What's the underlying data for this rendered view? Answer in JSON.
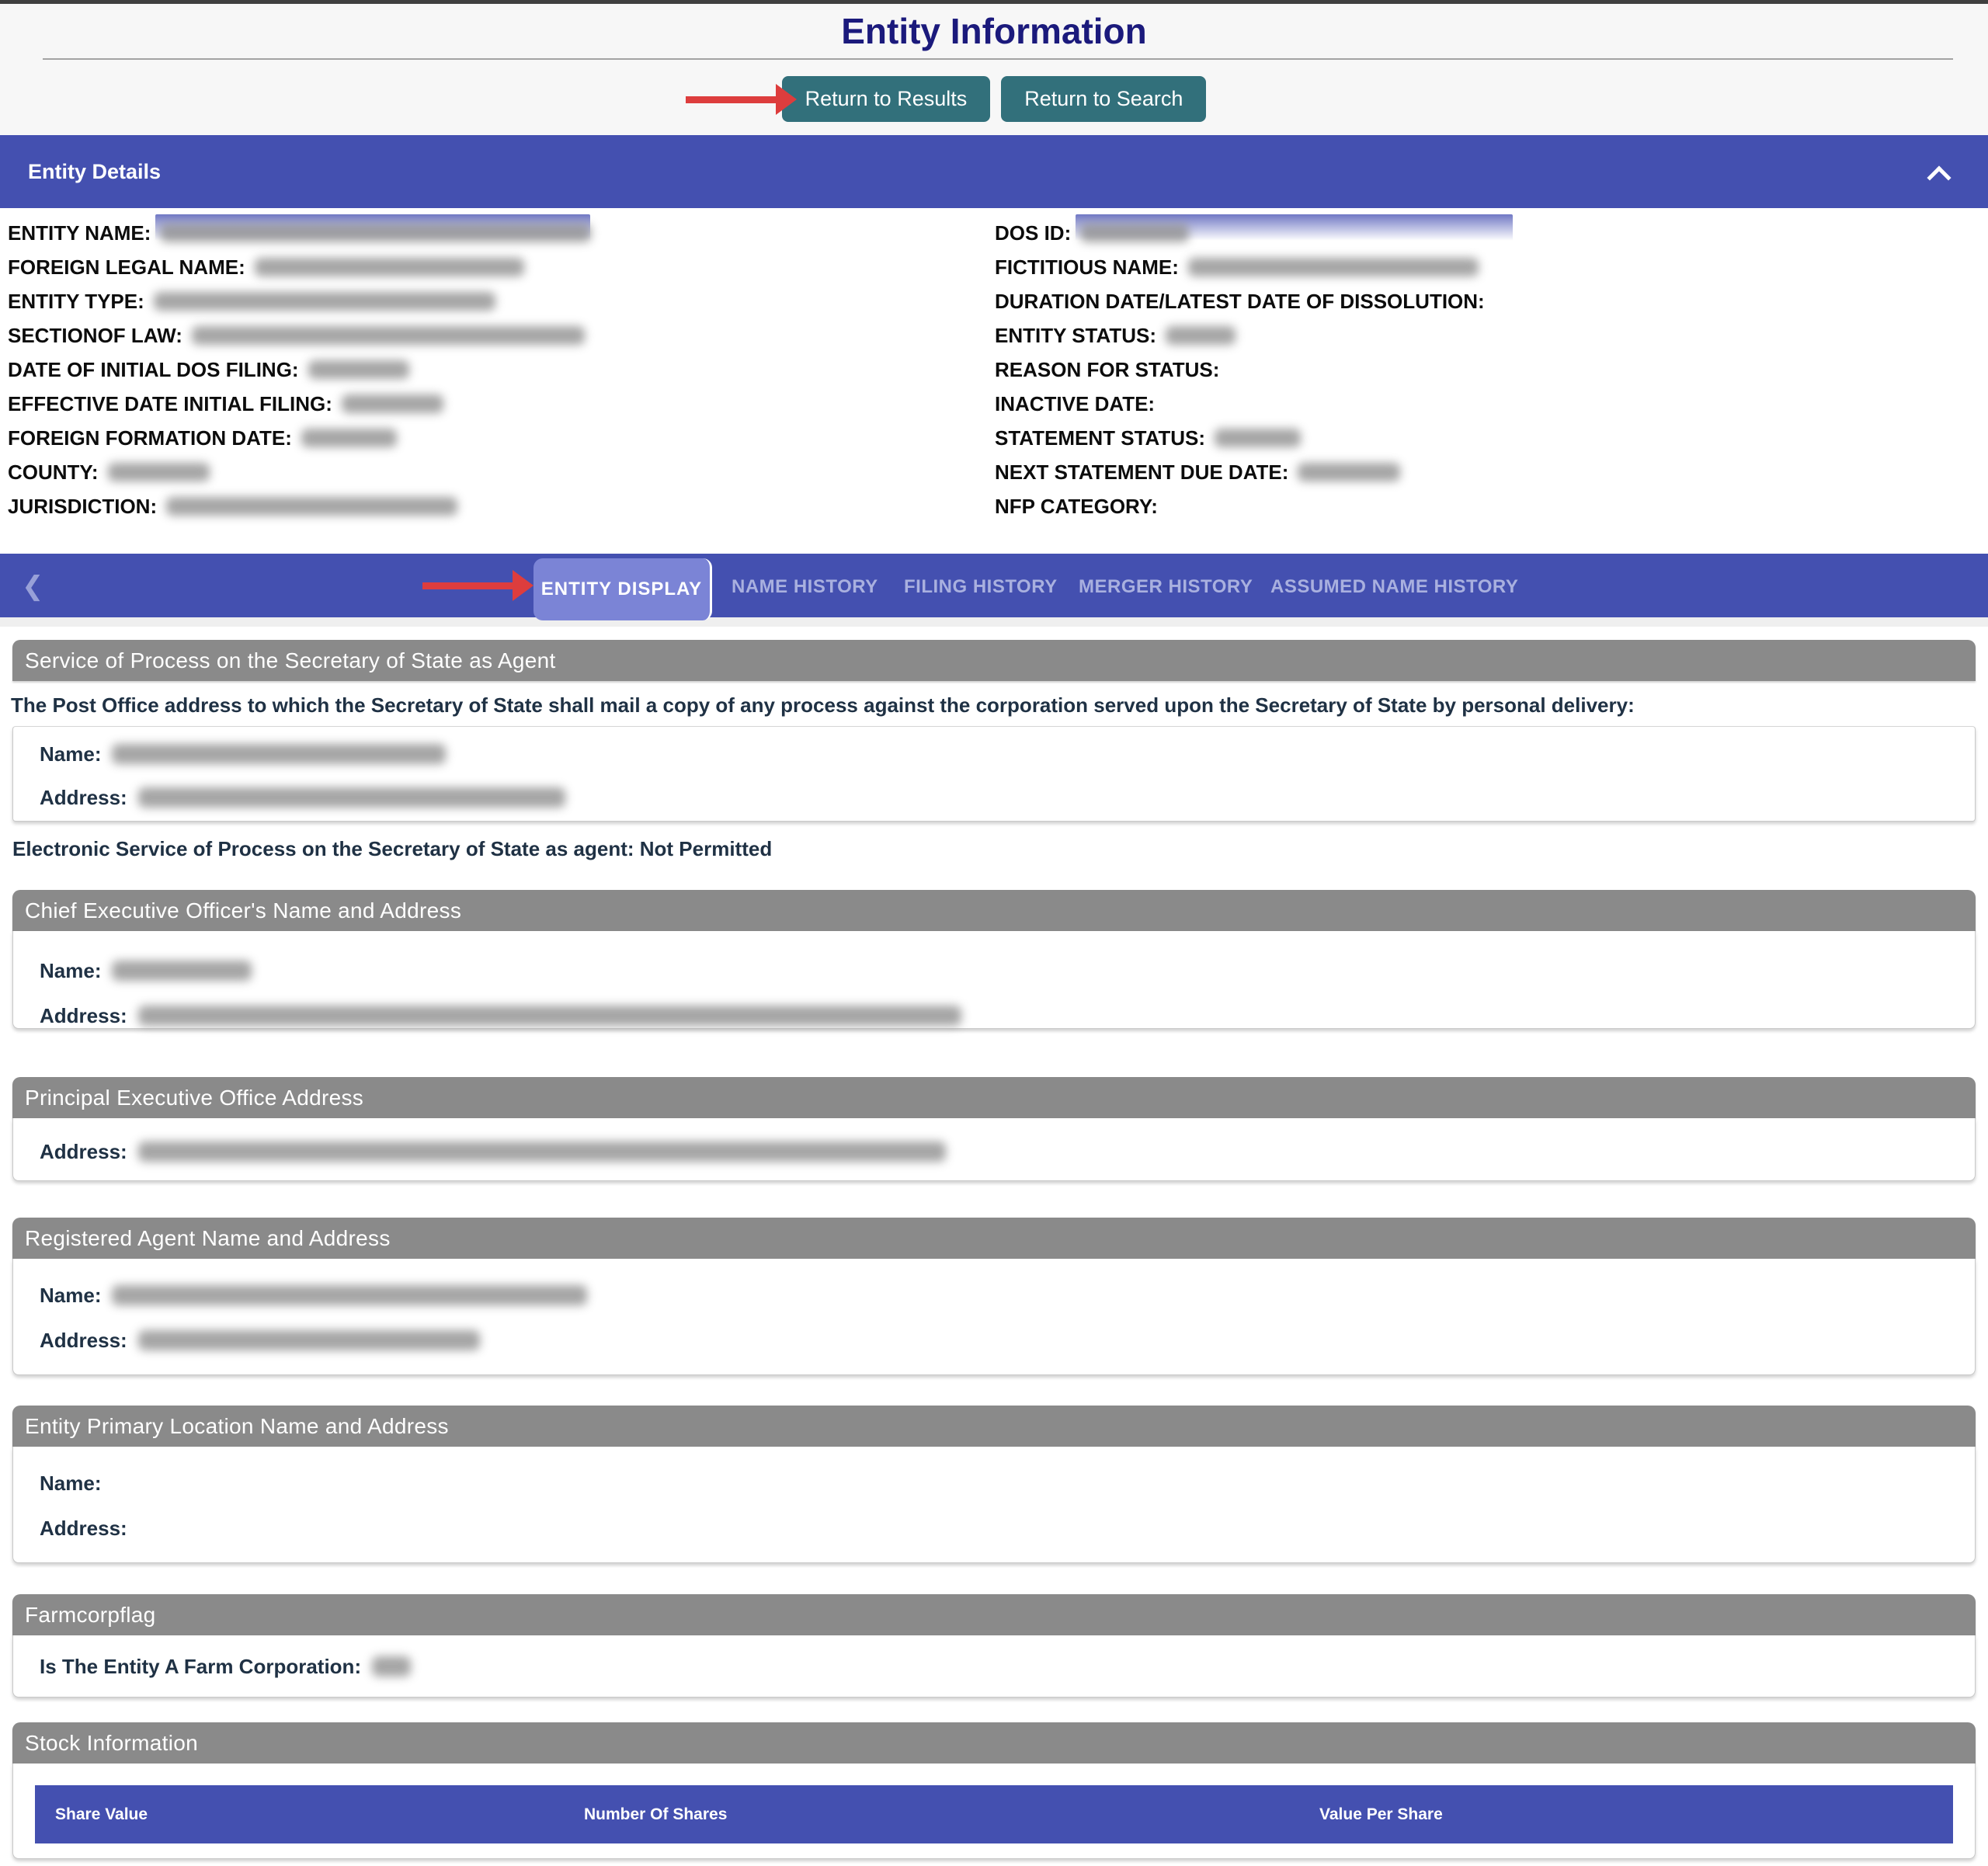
{
  "colors": {
    "indigo": "#4450b0",
    "indigo_light": "#7b84d6",
    "teal": "#32707b",
    "red": "#dd3d3d",
    "gray_header": "#8a8a8a",
    "navy_title": "#1b1a7c",
    "text_dark": "#1f3144",
    "tab_inactive": "#a9b0df"
  },
  "page": {
    "title": "Entity Information",
    "return_to_results": "Return to Results",
    "return_to_search": "Return to Search"
  },
  "entity_details": {
    "header": "Entity Details",
    "left_fields": [
      {
        "label": "ENTITY NAME:",
        "blur_width": 555,
        "band_width": 560
      },
      {
        "label": "FOREIGN LEGAL NAME:",
        "blur_width": 347
      },
      {
        "label": "ENTITY TYPE:",
        "blur_width": 440
      },
      {
        "label": "SECTIONOF LAW:",
        "blur_width": 506
      },
      {
        "label": "DATE OF INITIAL DOS FILING:",
        "blur_width": 130
      },
      {
        "label": "EFFECTIVE DATE INITIAL FILING:",
        "blur_width": 131
      },
      {
        "label": "FOREIGN FORMATION DATE:",
        "blur_width": 123
      },
      {
        "label": "COUNTY:",
        "blur_width": 131
      },
      {
        "label": "JURISDICTION:",
        "blur_width": 375
      }
    ],
    "right_fields": [
      {
        "label": "DOS ID:",
        "blur_width": 140,
        "band_width": 563
      },
      {
        "label": "FICTITIOUS NAME:",
        "blur_width": 374
      },
      {
        "label": "DURATION DATE/LATEST DATE OF DISSOLUTION:"
      },
      {
        "label": "ENTITY STATUS:",
        "blur_width": 90
      },
      {
        "label": "REASON FOR STATUS:"
      },
      {
        "label": "INACTIVE DATE:"
      },
      {
        "label": "STATEMENT STATUS:",
        "blur_width": 111
      },
      {
        "label": "NEXT STATEMENT DUE DATE:",
        "blur_width": 132
      },
      {
        "label": "NFP CATEGORY:"
      }
    ]
  },
  "tabs": {
    "back_chevron": "❮",
    "items": [
      {
        "label": "ENTITY DISPLAY",
        "active": true
      },
      {
        "label": "NAME HISTORY",
        "active": false
      },
      {
        "label": "FILING HISTORY",
        "active": false
      },
      {
        "label": "MERGER HISTORY",
        "active": false
      },
      {
        "label": "ASSUMED NAME HISTORY",
        "active": false
      }
    ]
  },
  "sections": {
    "service_of_process": {
      "header": "Service of Process on the Secretary of State as Agent",
      "intro": "The Post Office address to which the Secretary of State shall mail a copy of any process against the corporation served upon the Secretary of State by personal delivery:",
      "name_label": "Name:",
      "name_blur_width": 430,
      "address_label": "Address:",
      "address_blur_width": 550,
      "electronic_note": "Electronic Service of Process on the Secretary of State as agent: Not Permitted"
    },
    "ceo": {
      "header": "Chief Executive Officer's Name and Address",
      "name_label": "Name:",
      "name_blur_width": 180,
      "address_label": "Address:",
      "address_blur_width": 1060
    },
    "principal_office": {
      "header": "Principal Executive Office Address",
      "address_label": "Address:",
      "address_blur_width": 1040
    },
    "registered_agent": {
      "header": "Registered Agent Name and Address",
      "name_label": "Name:",
      "name_blur_width": 612,
      "address_label": "Address:",
      "address_blur_width": 440
    },
    "primary_location": {
      "header": "Entity Primary Location Name and Address",
      "name_label": "Name:",
      "address_label": "Address:"
    },
    "farmcorpflag": {
      "header": "Farmcorpflag",
      "question_label": "Is The Entity A Farm Corporation:",
      "value_blur_width": 50
    },
    "stock": {
      "header": "Stock Information",
      "columns": [
        "Share Value",
        "Number Of Shares",
        "Value Per Share"
      ]
    }
  }
}
